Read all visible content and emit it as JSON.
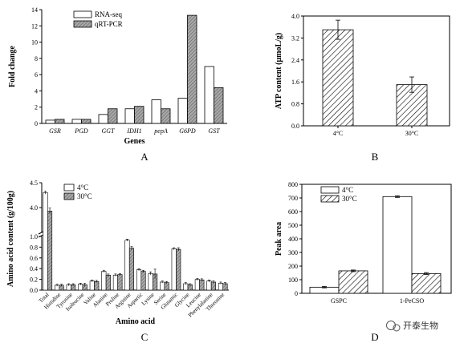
{
  "panels": {
    "A": "A",
    "B": "B",
    "C": "C",
    "D": "D"
  },
  "watermark": {
    "text": "开泰生物"
  },
  "colors": {
    "bar_open": "#ffffff",
    "bar_gray": "#9a9a9a",
    "stroke": "#000000"
  },
  "chart_data": [
    {
      "id": "A",
      "type": "bar",
      "xlabel": "Genes",
      "ylabel": "Fold change",
      "ylim": [
        0,
        14
      ],
      "yticks": [
        "0",
        "2",
        "4",
        "6",
        "8",
        "10",
        "12",
        "14"
      ],
      "categories": [
        "GSR",
        "PGD",
        "GGT",
        "IDH1",
        "pepA",
        "G6PD",
        "GST"
      ],
      "series": [
        {
          "name": "RNA-seq",
          "values": [
            0.4,
            0.5,
            1.1,
            1.8,
            2.9,
            3.1,
            7.0
          ]
        },
        {
          "name": "qRT-PCR",
          "values": [
            0.5,
            0.5,
            1.8,
            2.1,
            1.8,
            13.3,
            4.4
          ]
        }
      ]
    },
    {
      "id": "B",
      "type": "bar",
      "xlabel": "",
      "ylabel": "ATP content (μmoL/g)",
      "ylim": [
        0,
        4.0
      ],
      "yticks": [
        "0.0",
        "0.8",
        "1.6",
        "2.4",
        "3.2",
        "4.0"
      ],
      "categories": [
        "4°C",
        "30°C"
      ],
      "values": [
        3.5,
        1.5
      ],
      "errors": [
        0.35,
        0.28
      ]
    },
    {
      "id": "C",
      "type": "bar",
      "xlabel": "Amino acid",
      "ylabel": "Amino acid content (g/100g)",
      "ylim": [
        0,
        4.5
      ],
      "yticks_lower": [
        "0.0",
        "0.2",
        "0.4",
        "0.6",
        "0.8",
        "1.0"
      ],
      "yticks_upper": [
        "4.0",
        "4.5"
      ],
      "categories": [
        "Total",
        "Histidine",
        "Tyrosine",
        "Isoleucine",
        "Valine",
        "Alanine",
        "Proline",
        "Arginine",
        "Aspartic",
        "Lysine",
        "Serine",
        "Glutamic",
        "Glycine",
        "Leucine",
        "Phenylalanine",
        "Threonine"
      ],
      "series": [
        {
          "name": "4°C",
          "values": [
            4.3,
            0.09,
            0.1,
            0.11,
            0.17,
            0.35,
            0.28,
            0.93,
            0.38,
            0.31,
            0.15,
            0.77,
            0.12,
            0.2,
            0.17,
            0.13
          ],
          "errors": [
            0.03,
            0.02,
            0.02,
            0.02,
            0.02,
            0.02,
            0.02,
            0.02,
            0.02,
            0.03,
            0.02,
            0.02,
            0.02,
            0.02,
            0.02,
            0.02
          ]
        },
        {
          "name": "30°C",
          "values": [
            3.93,
            0.09,
            0.1,
            0.1,
            0.16,
            0.28,
            0.29,
            0.78,
            0.35,
            0.3,
            0.14,
            0.76,
            0.1,
            0.19,
            0.15,
            0.12
          ],
          "errors": [
            0.06,
            0.02,
            0.02,
            0.03,
            0.02,
            0.02,
            0.02,
            0.03,
            0.02,
            0.09,
            0.02,
            0.03,
            0.02,
            0.02,
            0.02,
            0.02
          ]
        }
      ]
    },
    {
      "id": "D",
      "type": "bar",
      "xlabel": "",
      "ylabel": "Peak area",
      "ylim": [
        0,
        800
      ],
      "yticks": [
        "0",
        "100",
        "200",
        "300",
        "400",
        "500",
        "600",
        "700",
        "800"
      ],
      "categories": [
        "GSPC",
        "1-PeCSO"
      ],
      "series": [
        {
          "name": "4°C",
          "values": [
            45,
            710
          ],
          "errors": [
            5,
            6
          ]
        },
        {
          "name": "30°C",
          "values": [
            165,
            145
          ],
          "errors": [
            6,
            7
          ]
        }
      ]
    }
  ]
}
